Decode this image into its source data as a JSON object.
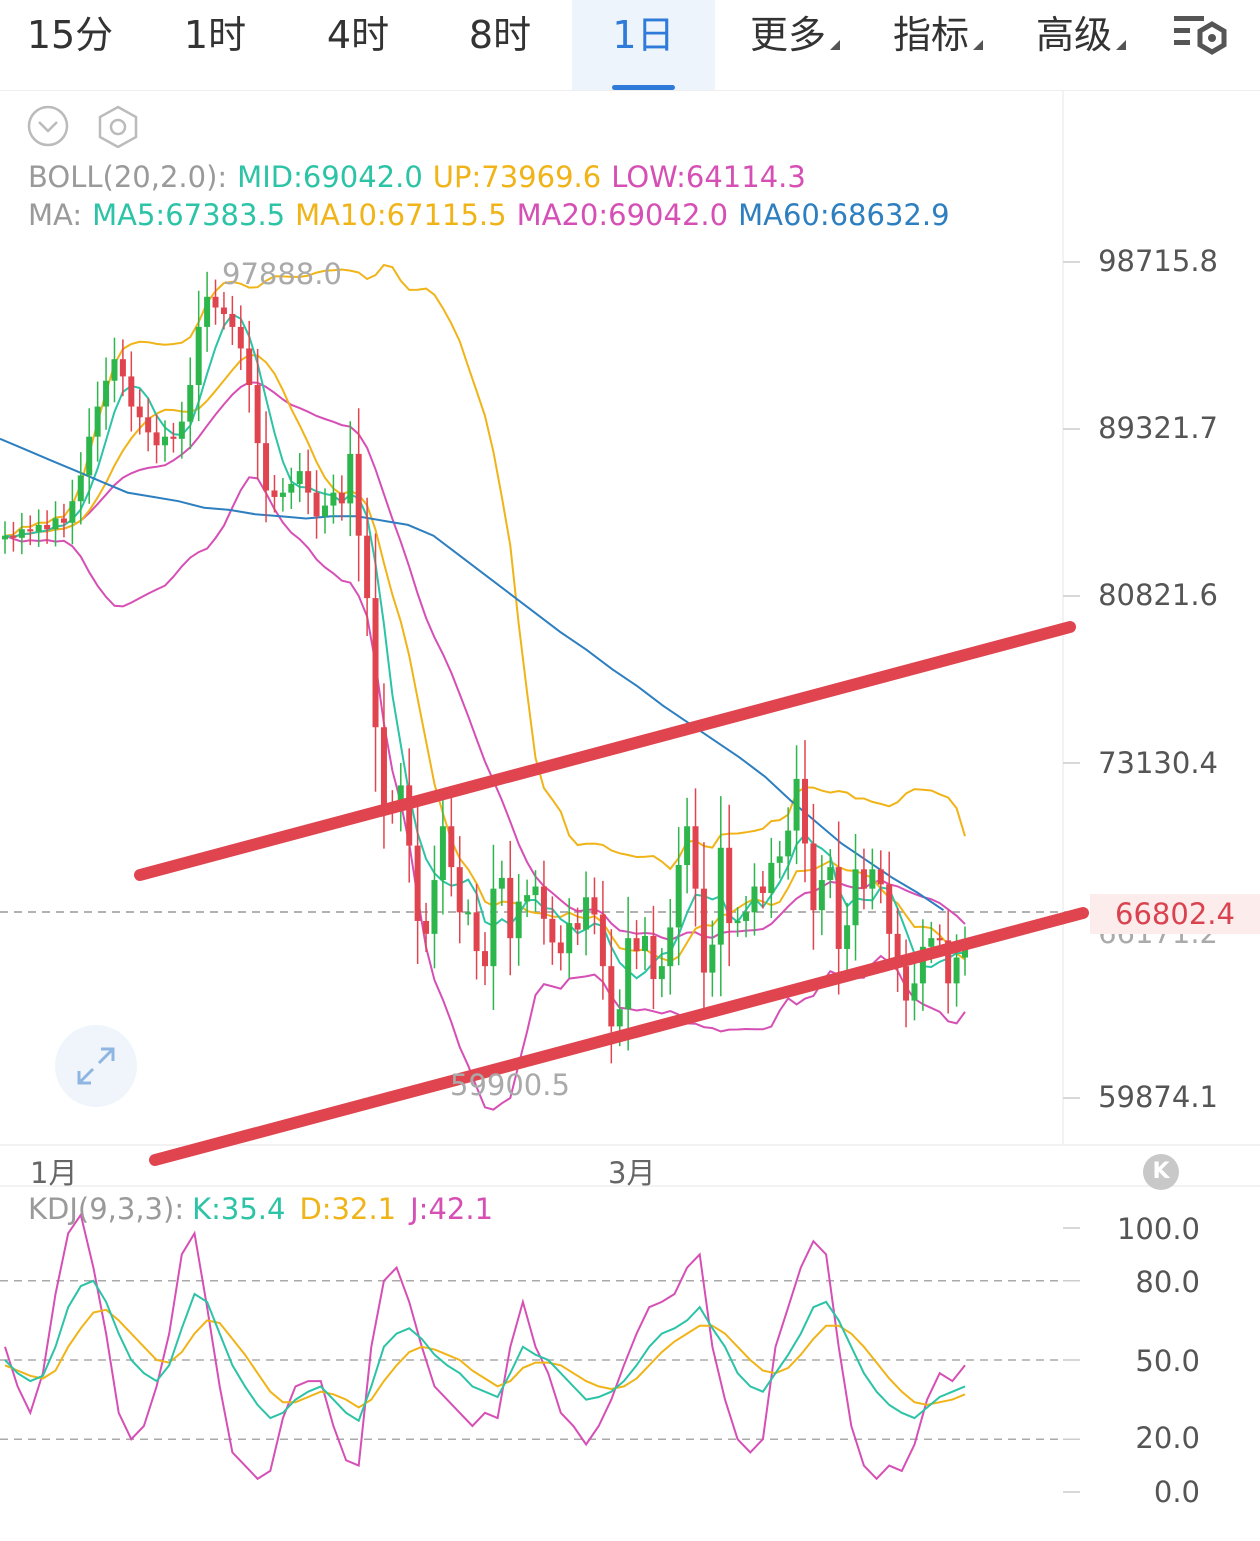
{
  "tabs": [
    {
      "label": "15分",
      "active": false
    },
    {
      "label": "1时",
      "active": false
    },
    {
      "label": "4时",
      "active": false
    },
    {
      "label": "8时",
      "active": false
    },
    {
      "label": "1日",
      "active": true
    },
    {
      "label": "更多",
      "active": false,
      "dropdown": true
    },
    {
      "label": "指标",
      "active": false,
      "dropdown": true
    },
    {
      "label": "高级",
      "active": false,
      "dropdown": true
    }
  ],
  "toolbar": {
    "settings_icon": "chart-settings-icon"
  },
  "icons": {
    "collapse": "chevron-down-circle-icon",
    "settings": "hexagon-gear-icon",
    "expand": "expand-arrows-icon",
    "kline_badge": "K"
  },
  "boll_legend": {
    "name": "BOLL(20,2.0):",
    "mid": "MID:69042.0",
    "up": "UP:73969.6",
    "low": "LOW:64114.3"
  },
  "ma_legend": {
    "name": "MA:",
    "ma5": "MA5:67383.5",
    "ma10": "MA10:67115.5",
    "ma20": "MA20:69042.0",
    "ma60": "MA60:68632.9"
  },
  "colors": {
    "up_candle": "#2db64b",
    "down_candle": "#e0454f",
    "mid": "#2cc3a6",
    "up": "#f0b418",
    "low": "#d64fb5",
    "ma60": "#2d7fc0",
    "channel": "#e0454f"
  },
  "chart_data": [
    {
      "type": "candlestick",
      "price_axis_labels": [
        "98715.8",
        "89321.7",
        "80821.6",
        "73130.4",
        "59874.1"
      ],
      "current_price": "66802.4",
      "hidden_price_label": "66171.2",
      "max_label": "97888.0",
      "min_label": "59900.5",
      "x_labels": [
        "1月",
        "3月"
      ],
      "ylim": [
        58000,
        101000
      ],
      "closes": [
        86000,
        85900,
        86300,
        86200,
        86500,
        86300,
        86800,
        86600,
        87600,
        88800,
        90600,
        92000,
        93200,
        94200,
        93400,
        92000,
        91500,
        90800,
        90200,
        90600,
        90500,
        91300,
        93000,
        95700,
        97100,
        96600,
        96300,
        95700,
        94700,
        93000,
        90300,
        88100,
        87800,
        88000,
        88400,
        89000,
        88000,
        86900,
        87400,
        88000,
        87500,
        89800,
        86000,
        83100,
        77100,
        73500,
        73300,
        74400,
        71600,
        68100,
        67500,
        70000,
        72500,
        70600,
        68500,
        68500,
        66700,
        66000,
        69600,
        70100,
        67300,
        69000,
        69300,
        69700,
        68200,
        67100,
        66600,
        68000,
        67700,
        69200,
        68400,
        66000,
        63200,
        64000,
        67300,
        66700,
        67400,
        65400,
        66000,
        67800,
        70700,
        72500,
        69600,
        65700,
        67000,
        71500,
        68000,
        68100,
        68500,
        69700,
        69400,
        70800,
        71100,
        72300,
        74700,
        71700,
        68600,
        70000,
        70600,
        66800,
        67900,
        70500,
        69600,
        70500,
        69800,
        67500,
        66000,
        64400,
        65200,
        66900,
        67300,
        67200,
        65200,
        66400,
        67000
      ],
      "ma60": [
        90500,
        90000,
        89500,
        89000,
        88500,
        88000,
        87800,
        87600,
        87300,
        87200,
        87000,
        86900,
        86800,
        86900,
        86900,
        86700,
        86500,
        86000,
        85100,
        84200,
        83300,
        82400,
        81500,
        80700,
        79800,
        79000,
        78100,
        77300,
        76500,
        75700,
        74800,
        73700,
        72700,
        71700,
        70900,
        70100,
        69400,
        68600
      ],
      "ma60_x_start": 0,
      "ma60_x_step": 25.5,
      "channel_upper": {
        "from": [
          140,
          875
        ],
        "to": [
          1070,
          627
        ]
      },
      "channel_lower": {
        "from": [
          155,
          1160
        ],
        "to": [
          1083,
          913
        ]
      }
    },
    {
      "type": "line",
      "title": "KDJ(9,3,3):",
      "k_label": "K:35.4",
      "d_label": "D:32.1",
      "j_label": "J:42.1",
      "y_axis_labels": [
        "100.0",
        "80.0",
        "50.0",
        "20.0",
        "0.0"
      ],
      "ylim": [
        0,
        100
      ],
      "k": [
        50,
        45,
        42,
        44,
        55,
        70,
        78,
        80,
        72,
        60,
        50,
        45,
        42,
        48,
        62,
        75,
        72,
        60,
        48,
        40,
        33,
        28,
        30,
        35,
        38,
        40,
        35,
        30,
        27,
        40,
        55,
        60,
        62,
        58,
        52,
        48,
        45,
        40,
        38,
        36,
        45,
        55,
        52,
        50,
        45,
        40,
        35,
        36,
        38,
        42,
        48,
        55,
        60,
        62,
        65,
        70,
        62,
        55,
        45,
        40,
        38,
        45,
        52,
        60,
        70,
        72,
        65,
        55,
        45,
        38,
        33,
        30,
        28,
        32,
        36,
        38,
        40
      ],
      "d": [
        48,
        46,
        44,
        43,
        46,
        55,
        62,
        68,
        69,
        65,
        60,
        55,
        50,
        49,
        53,
        60,
        65,
        64,
        58,
        52,
        45,
        38,
        34,
        34,
        36,
        38,
        37,
        35,
        32,
        35,
        42,
        48,
        53,
        55,
        54,
        52,
        50,
        46,
        43,
        40,
        42,
        47,
        49,
        49,
        48,
        45,
        42,
        40,
        39,
        40,
        43,
        48,
        53,
        57,
        60,
        63,
        63,
        60,
        55,
        50,
        46,
        45,
        47,
        52,
        58,
        63,
        63,
        60,
        55,
        49,
        43,
        38,
        34,
        33,
        34,
        35,
        37
      ],
      "j": [
        55,
        40,
        30,
        45,
        75,
        98,
        105,
        85,
        60,
        30,
        20,
        25,
        40,
        60,
        90,
        98,
        70,
        40,
        15,
        10,
        5,
        8,
        28,
        40,
        42,
        42,
        25,
        12,
        10,
        55,
        80,
        85,
        72,
        55,
        40,
        35,
        30,
        25,
        30,
        28,
        55,
        72,
        55,
        45,
        30,
        25,
        18,
        25,
        35,
        48,
        60,
        70,
        72,
        75,
        85,
        90,
        55,
        35,
        20,
        15,
        20,
        55,
        70,
        85,
        95,
        90,
        55,
        25,
        10,
        5,
        10,
        8,
        18,
        35,
        45,
        42,
        48
      ]
    }
  ]
}
